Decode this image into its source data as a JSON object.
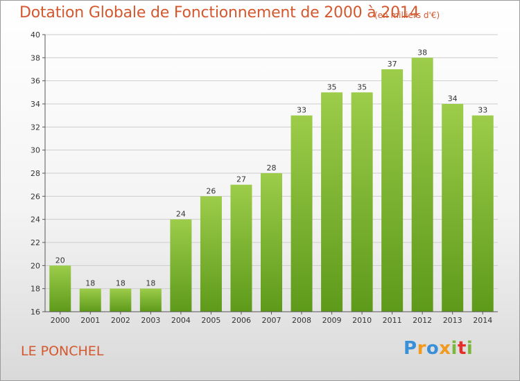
{
  "header": {
    "title": "Dotation Globale de Fonctionnement de 2000 à 2014",
    "subtitle": "(en milliers d'€)"
  },
  "footer": {
    "commune": "LE PONCHEL",
    "logo": {
      "letters": [
        "P",
        "r",
        "o",
        "x",
        "i",
        "t",
        "i"
      ],
      "colors": [
        "#3a8fd9",
        "#f29a1d",
        "#3a8fd9",
        "#f29a1d",
        "#7ab83a",
        "#e5302a",
        "#7ab83a"
      ]
    }
  },
  "chart_data": {
    "type": "bar",
    "categories": [
      "2000",
      "2001",
      "2002",
      "2003",
      "2004",
      "2005",
      "2006",
      "2007",
      "2008",
      "2009",
      "2010",
      "2011",
      "2012",
      "2013",
      "2014"
    ],
    "values": [
      20,
      18,
      18,
      18,
      24,
      26,
      27,
      28,
      33,
      35,
      35,
      37,
      38,
      34,
      33
    ],
    "title": "Dotation Globale de Fonctionnement de 2000 à 2014",
    "subtitle": "(en milliers d'€)",
    "xlabel": "",
    "ylabel": "",
    "ylim": [
      16,
      40
    ],
    "yticks": [
      16,
      18,
      20,
      22,
      24,
      26,
      28,
      30,
      32,
      34,
      36,
      38,
      40
    ],
    "grid": true,
    "colors": {
      "bar_top": "#9ccc4a",
      "bar_bottom": "#5e9a1a",
      "grid": "#cccccc"
    }
  }
}
